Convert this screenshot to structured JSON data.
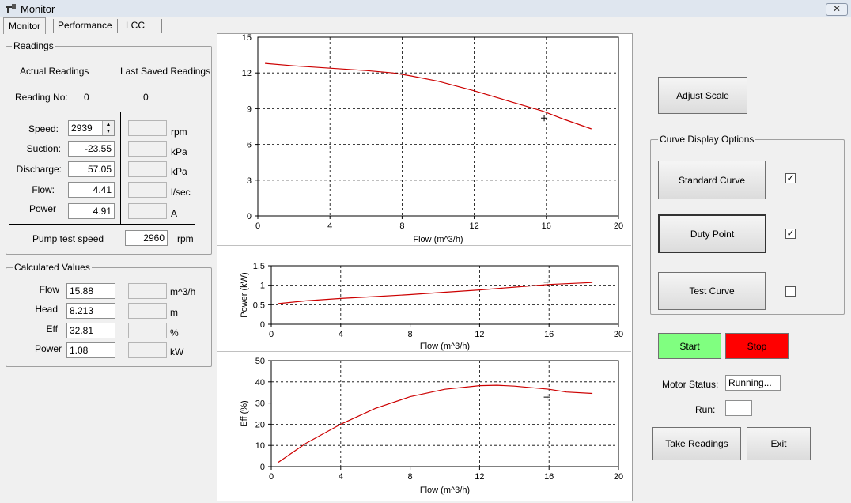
{
  "window": {
    "title": "Monitor",
    "close_label": "✕"
  },
  "tabs": [
    {
      "label": "Monitor",
      "active": true
    },
    {
      "label": "Performance",
      "active": false
    },
    {
      "label": "LCC",
      "active": false
    }
  ],
  "readings": {
    "title": "Readings",
    "actual_label": "Actual Readings",
    "saved_label": "Last Saved Readings",
    "reading_no_label": "Reading No:",
    "reading_no_actual": "0",
    "reading_no_saved": "0",
    "rows": [
      {
        "label": "Speed:",
        "value": "2939",
        "unit": "rpm"
      },
      {
        "label": "Suction:",
        "value": "-23.55",
        "unit": "kPa"
      },
      {
        "label": "Discharge:",
        "value": "57.05",
        "unit": "kPa"
      },
      {
        "label": "Flow:",
        "value": "4.41",
        "unit": "l/sec"
      },
      {
        "label": "Power",
        "value": "4.91",
        "unit": "A"
      }
    ],
    "pump_test_speed_label": "Pump test speed",
    "pump_test_speed_value": "2960",
    "pump_test_speed_unit": "rpm"
  },
  "calculated": {
    "title": "Calculated Values",
    "rows": [
      {
        "label": "Flow",
        "value": "15.88",
        "unit": "m^3/h"
      },
      {
        "label": "Head",
        "value": "8.213",
        "unit": "m"
      },
      {
        "label": "Eff",
        "value": "32.81",
        "unit": "%"
      },
      {
        "label": "Power",
        "value": "1.08",
        "unit": "kW"
      }
    ]
  },
  "controls": {
    "adjust_scale": "Adjust Scale",
    "curve_options_title": "Curve Display Options",
    "standard_curve": "Standard Curve",
    "standard_checked": true,
    "duty_point": "Duty Point",
    "duty_checked": true,
    "test_curve": "Test Curve",
    "test_checked": false,
    "start": "Start",
    "stop": "Stop",
    "start_color": "#80ff80",
    "stop_color": "#ff0000",
    "motor_status_label": "Motor Status:",
    "motor_status_value": "Running...",
    "run_label": "Run:",
    "run_value": "",
    "take_readings": "Take Readings",
    "exit": "Exit",
    "check_mark": "✓"
  },
  "chart_data": [
    {
      "type": "line",
      "title": "",
      "xlabel": "Flow (m^3/h)",
      "ylabel": "",
      "xlim": [
        0,
        20
      ],
      "ylim": [
        0,
        15
      ],
      "xticks": [
        0,
        4,
        8,
        12,
        16,
        20
      ],
      "yticks": [
        0,
        3,
        6,
        9,
        12
      ],
      "top_tick_label": "15",
      "grid": true,
      "series": [
        {
          "points": [
            [
              0.4,
              12.8
            ],
            [
              2,
              12.6
            ],
            [
              4,
              12.4
            ],
            [
              6,
              12.2
            ],
            [
              7.5,
              12.0
            ],
            [
              8.5,
              11.75
            ],
            [
              10,
              11.3
            ],
            [
              12,
              10.5
            ],
            [
              14,
              9.6
            ],
            [
              15.8,
              8.8
            ],
            [
              17,
              8.1
            ],
            [
              18.5,
              7.3
            ]
          ]
        }
      ],
      "duty_point": [
        15.88,
        8.213
      ],
      "line_color": "#cc0000"
    },
    {
      "type": "line",
      "title": "",
      "xlabel": "Flow (m^3/h)",
      "ylabel": "Power (kW)",
      "xlim": [
        0,
        20
      ],
      "ylim": [
        0,
        1.5
      ],
      "xticks": [
        0,
        4,
        8,
        12,
        16,
        20
      ],
      "yticks": [
        0,
        0.5,
        1,
        1.5
      ],
      "ytick_labels": [
        "0",
        "0.5",
        "1",
        "1.5"
      ],
      "grid": true,
      "series": [
        {
          "points": [
            [
              0.4,
              0.53
            ],
            [
              2,
              0.6
            ],
            [
              4,
              0.66
            ],
            [
              6,
              0.71
            ],
            [
              8,
              0.76
            ],
            [
              10,
              0.82
            ],
            [
              12,
              0.88
            ],
            [
              14,
              0.95
            ],
            [
              16,
              1.02
            ],
            [
              18.5,
              1.07
            ]
          ]
        }
      ],
      "duty_point": [
        15.88,
        1.08
      ],
      "line_color": "#cc0000"
    },
    {
      "type": "line",
      "title": "",
      "xlabel": "Flow (m^3/h)",
      "ylabel": "Eff (%)",
      "xlim": [
        0,
        20
      ],
      "ylim": [
        0,
        50
      ],
      "xticks": [
        0,
        4,
        8,
        12,
        16,
        20
      ],
      "yticks": [
        0,
        10,
        20,
        30,
        40,
        50
      ],
      "grid": true,
      "series": [
        {
          "points": [
            [
              0.4,
              2
            ],
            [
              2,
              11
            ],
            [
              4,
              20
            ],
            [
              6,
              27.5
            ],
            [
              8,
              33
            ],
            [
              10,
              36.5
            ],
            [
              12,
              38.2
            ],
            [
              13,
              38.4
            ],
            [
              14,
              38
            ],
            [
              16,
              36.5
            ],
            [
              17,
              35.2
            ],
            [
              18.5,
              34.5
            ]
          ]
        }
      ],
      "duty_point": [
        15.88,
        32.81
      ],
      "line_color": "#cc0000"
    }
  ]
}
